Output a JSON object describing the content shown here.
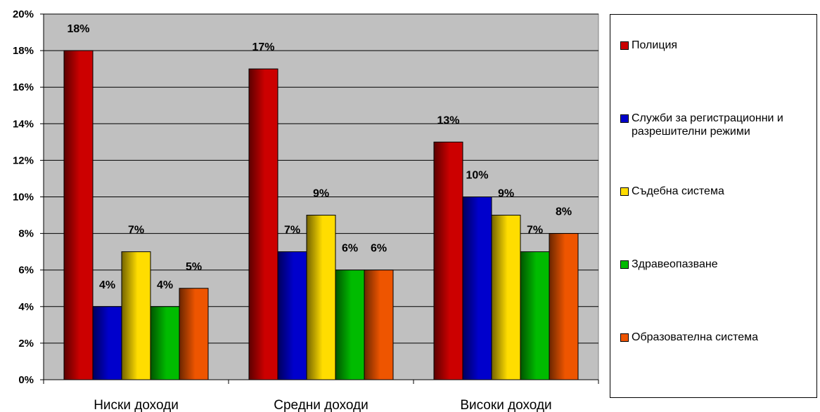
{
  "chart_data": {
    "type": "bar",
    "categories": [
      "Ниски доходи",
      "Средни доходи",
      "Високи доходи"
    ],
    "series": [
      {
        "name": "Полиция",
        "values": [
          18,
          17,
          13
        ],
        "color": "#cc0000"
      },
      {
        "name": "Служби за регистрационни и разрешителни режими",
        "values": [
          4,
          7,
          10
        ],
        "color": "#0000cc"
      },
      {
        "name": "Съдебна система",
        "values": [
          7,
          9,
          9
        ],
        "color": "#ffdd00"
      },
      {
        "name": "Здравеопазване",
        "values": [
          4,
          6,
          7
        ],
        "color": "#00bb00"
      },
      {
        "name": "Образователна система",
        "values": [
          5,
          6,
          8
        ],
        "color": "#ee5500"
      }
    ],
    "data_labels": [
      [
        "18%",
        "17%",
        "13%"
      ],
      [
        "4%",
        "7%",
        "10%"
      ],
      [
        "7%",
        "9%",
        "9%"
      ],
      [
        "4%",
        "6%",
        "7%"
      ],
      [
        "5%",
        "6%",
        "8%"
      ]
    ],
    "ylim": [
      0,
      20
    ],
    "ytick_labels": [
      "0%",
      "2%",
      "4%",
      "6%",
      "8%",
      "10%",
      "12%",
      "14%",
      "16%",
      "18%",
      "20%"
    ],
    "plot_background": "#c0c0c0",
    "grid": true,
    "legend_position": "right",
    "title": "",
    "xlabel": "",
    "ylabel": ""
  },
  "legend": {
    "labels": [
      "Полиция",
      "Служби за регистрационни и разрешителни режими",
      "Съдебна система",
      "Здравеопазване",
      "Образователна система"
    ]
  }
}
